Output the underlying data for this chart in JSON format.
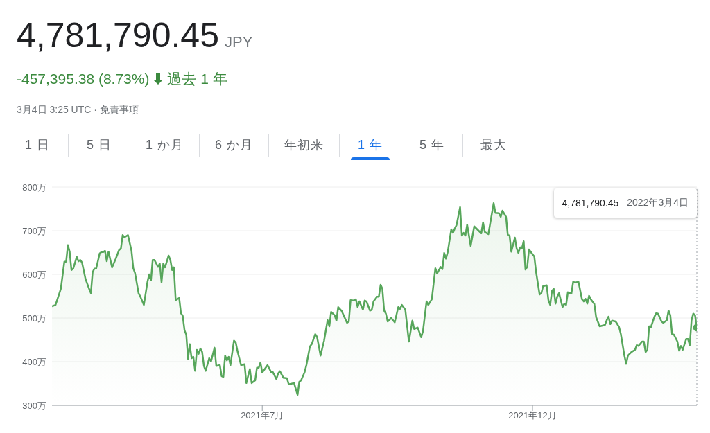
{
  "chart_data": {
    "type": "area",
    "title": "4,781,790.45",
    "subtitle": "-457,395.38 (8.73%)",
    "annotations": [
      "JPY",
      "過去 1 年",
      "3月4日 3:25 UTC · 免責事項",
      "1 日",
      "5 日",
      "1 か月",
      "6 か月",
      "年初来",
      "1 年",
      "5 年",
      "最大",
      "4,781,790.45"
    ],
    "x": [
      "2021-03-04",
      "2021-03-06",
      "2021-03-09",
      "2021-03-10",
      "2021-03-11",
      "2021-03-12",
      "2021-03-13",
      "2021-03-14",
      "2021-03-15",
      "2021-03-16",
      "2021-03-18",
      "2021-03-19",
      "2021-03-20",
      "2021-03-21",
      "2021-03-23",
      "2021-03-25",
      "2021-03-26",
      "2021-03-27",
      "2021-03-28",
      "2021-03-29",
      "2021-03-31",
      "2021-04-01",
      "2021-04-02",
      "2021-04-03",
      "2021-04-04",
      "2021-04-05",
      "2021-04-07",
      "2021-04-09",
      "2021-04-11",
      "2021-04-12",
      "2021-04-13",
      "2021-04-14",
      "2021-04-16",
      "2021-04-18",
      "2021-04-19",
      "2021-04-20",
      "2021-04-22",
      "2021-04-23",
      "2021-04-25",
      "2021-04-27",
      "2021-04-28",
      "2021-04-29",
      "2021-04-30",
      "2021-05-01",
      "2021-05-03",
      "2021-05-04",
      "2021-05-05",
      "2021-05-06",
      "2021-05-07",
      "2021-05-09",
      "2021-05-10",
      "2021-05-11",
      "2021-05-12",
      "2021-05-13",
      "2021-05-15",
      "2021-05-16",
      "2021-05-17",
      "2021-05-18",
      "2021-05-19",
      "2021-05-20",
      "2021-05-21",
      "2021-05-22",
      "2021-05-23",
      "2021-05-24",
      "2021-05-25",
      "2021-05-26",
      "2021-05-27",
      "2021-05-28",
      "2021-05-29",
      "2021-05-30",
      "2021-06-01",
      "2021-06-02",
      "2021-06-04",
      "2021-06-05",
      "2021-06-07",
      "2021-06-08",
      "2021-06-09",
      "2021-06-10",
      "2021-06-11",
      "2021-06-12",
      "2021-06-13",
      "2021-06-15",
      "2021-06-16",
      "2021-06-17",
      "2021-06-19",
      "2021-06-21",
      "2021-06-22",
      "2021-06-24",
      "2021-06-25",
      "2021-06-27",
      "2021-06-28",
      "2021-06-29",
      "2021-06-30",
      "2021-07-01",
      "2021-07-04",
      "2021-07-06",
      "2021-07-07",
      "2021-07-09",
      "2021-07-10",
      "2021-07-11",
      "2021-07-13",
      "2021-07-15",
      "2021-07-16",
      "2021-07-19",
      "2021-07-21",
      "2021-07-22",
      "2021-07-23",
      "2021-07-25",
      "2021-07-26",
      "2021-07-28",
      "2021-07-29",
      "2021-07-31",
      "2021-08-01",
      "2021-08-02",
      "2021-08-03",
      "2021-08-05",
      "2021-08-07",
      "2021-08-08",
      "2021-08-09",
      "2021-08-11",
      "2021-08-12",
      "2021-08-13",
      "2021-08-15",
      "2021-08-18",
      "2021-08-19",
      "2021-08-20",
      "2021-08-22",
      "2021-08-23",
      "2021-08-24",
      "2021-08-25",
      "2021-08-27",
      "2021-08-28",
      "2021-08-29",
      "2021-08-31",
      "2021-09-01",
      "2021-09-02",
      "2021-09-04",
      "2021-09-05",
      "2021-09-06",
      "2021-09-07",
      "2021-09-08",
      "2021-09-09",
      "2021-09-10",
      "2021-09-12",
      "2021-09-14",
      "2021-09-16",
      "2021-09-17",
      "2021-09-18",
      "2021-09-20",
      "2021-09-22",
      "2021-09-24",
      "2021-09-25",
      "2021-09-27",
      "2021-09-29",
      "2021-09-30",
      "2021-10-02",
      "2021-10-03",
      "2021-10-05",
      "2021-10-07",
      "2021-10-08",
      "2021-10-10",
      "2021-10-11",
      "2021-10-12",
      "2021-10-13",
      "2021-10-14",
      "2021-10-16",
      "2021-10-17",
      "2021-10-18",
      "2021-10-19",
      "2021-10-21",
      "2021-10-22",
      "2021-10-23",
      "2021-10-24",
      "2021-10-25",
      "2021-10-27",
      "2021-10-29",
      "2021-10-31",
      "2021-11-02",
      "2021-11-03",
      "2021-11-04",
      "2021-11-06",
      "2021-11-07",
      "2021-11-09",
      "2021-11-10",
      "2021-11-12",
      "2021-11-13",
      "2021-11-14",
      "2021-11-16",
      "2021-11-17",
      "2021-11-18",
      "2021-11-19",
      "2021-11-21",
      "2021-11-22",
      "2021-11-23",
      "2021-11-24",
      "2021-11-25",
      "2021-11-26",
      "2021-11-27",
      "2021-11-28",
      "2021-11-29",
      "2021-12-01",
      "2021-12-02",
      "2021-12-03",
      "2021-12-05",
      "2021-12-06",
      "2021-12-07",
      "2021-12-09",
      "2021-12-10",
      "2021-12-11",
      "2021-12-12",
      "2021-12-13",
      "2021-12-14",
      "2021-12-15",
      "2021-12-16",
      "2021-12-18",
      "2021-12-19",
      "2021-12-20",
      "2021-12-21",
      "2021-12-23",
      "2021-12-24",
      "2021-12-25",
      "2021-12-27",
      "2021-12-29",
      "2021-12-30",
      "2021-12-31",
      "2022-01-01",
      "2022-01-02",
      "2022-01-03",
      "2022-01-05",
      "2022-01-06",
      "2022-01-08",
      "2022-01-10",
      "2022-01-11",
      "2022-01-12",
      "2022-01-13",
      "2022-01-14",
      "2022-01-15",
      "2022-01-17",
      "2022-01-18",
      "2022-01-19",
      "2022-01-20",
      "2022-01-22",
      "2022-01-23",
      "2022-01-24",
      "2022-01-26",
      "2022-01-28",
      "2022-01-29",
      "2022-01-30",
      "2022-02-01",
      "2022-02-02",
      "2022-02-03",
      "2022-02-04",
      "2022-02-05",
      "2022-02-06",
      "2022-02-08",
      "2022-02-09",
      "2022-02-10",
      "2022-02-12",
      "2022-02-13",
      "2022-02-15",
      "2022-02-16",
      "2022-02-17",
      "2022-02-18",
      "2022-02-19",
      "2022-02-21",
      "2022-02-22",
      "2022-02-23",
      "2022-02-24",
      "2022-02-26",
      "2022-02-27",
      "2022-02-28",
      "2022-03-01",
      "2022-03-02",
      "2022-03-03",
      "2022-03-04"
    ],
    "series": [
      {
        "color": "#57a65b",
        "values": [
          527,
          530,
          567,
          598,
          629,
          629,
          667,
          652,
          610,
          613,
          640,
          630,
          633,
          627,
          589,
          567,
          557,
          605,
          613,
          613,
          648,
          651,
          651,
          654,
          630,
          652,
          616,
          635,
          656,
          659,
          690,
          685,
          690,
          654,
          614,
          603,
          557,
          549,
          530,
          582,
          600,
          586,
          633,
          633,
          617,
          625,
          582,
          625,
          616,
          643,
          633,
          610,
          616,
          541,
          546,
          511,
          505,
          472,
          462,
          406,
          440,
          408,
          411,
          379,
          427,
          418,
          430,
          422,
          390,
          379,
          408,
          400,
          432,
          390,
          392,
          367,
          365,
          414,
          403,
          411,
          392,
          448,
          444,
          424,
          392,
          394,
          351,
          383,
          351,
          357,
          386,
          386,
          398,
          375,
          392,
          376,
          376,
          360,
          373,
          378,
          363,
          362,
          348,
          351,
          324,
          354,
          357,
          376,
          392,
          435,
          440,
          463,
          457,
          436,
          414,
          448,
          495,
          481,
          514,
          506,
          494,
          525,
          516,
          489,
          492,
          541,
          540,
          543,
          525,
          538,
          519,
          540,
          538,
          517,
          519,
          538,
          549,
          549,
          576,
          567,
          517,
          510,
          492,
          500,
          490,
          525,
          521,
          530,
          519,
          446,
          494,
          475,
          478,
          456,
          470,
          538,
          530,
          543,
          614,
          602,
          617,
          612,
          649,
          636,
          651,
          703,
          695,
          705,
          713,
          754,
          689,
          695,
          689,
          714,
          665,
          710,
          702,
          694,
          719,
          697,
          692,
          716,
          763,
          741,
          740,
          732,
          746,
          732,
          690,
          689,
          652,
          684,
          660,
          649,
          662,
          660,
          676,
          611,
          617,
          657,
          646,
          641,
          606,
          554,
          557,
          573,
          575,
          541,
          530,
          562,
          567,
          533,
          549,
          557,
          525,
          533,
          530,
          559,
          556,
          583,
          581,
          583,
          543,
          538,
          544,
          533,
          551,
          543,
          532,
          502,
          481,
          483,
          484,
          495,
          503,
          486,
          494,
          492,
          486,
          479,
          463,
          414,
          395,
          414,
          422,
          427,
          438,
          436,
          446,
          446,
          422,
          427,
          481,
          479,
          503,
          511,
          510,
          492,
          489,
          495,
          517,
          506,
          463,
          462,
          446,
          425,
          436,
          427,
          452,
          452,
          438,
          495,
          510,
          506,
          478
        ]
      },
      {
        "type": "scatter",
        "color": "#57a65b",
        "x": [
          "2022-03-04"
        ],
        "values": [
          478
        ]
      }
    ],
    "xlim": [
      "2021-03-04",
      "2022-03-04"
    ],
    "xticks": [
      {
        "value": "2021-07-01",
        "label": "2021年7月"
      },
      {
        "value": "2021-12-01",
        "label": "2021年12月"
      }
    ],
    "ylim": [
      300,
      800
    ],
    "yticks": [
      {
        "value": 300,
        "label": "300万"
      },
      {
        "value": 400,
        "label": "400万"
      },
      {
        "value": 500,
        "label": "500万"
      },
      {
        "value": 600,
        "label": "600万"
      },
      {
        "value": 700,
        "label": "700万"
      },
      {
        "value": 800,
        "label": "800万"
      }
    ],
    "ref_lines": [
      {
        "axis": "x",
        "value": "2022-03-04",
        "label": "2022年3月4日",
        "color": "#9aa0a6",
        "line_style": "dotted"
      }
    ],
    "grid": "y"
  }
}
